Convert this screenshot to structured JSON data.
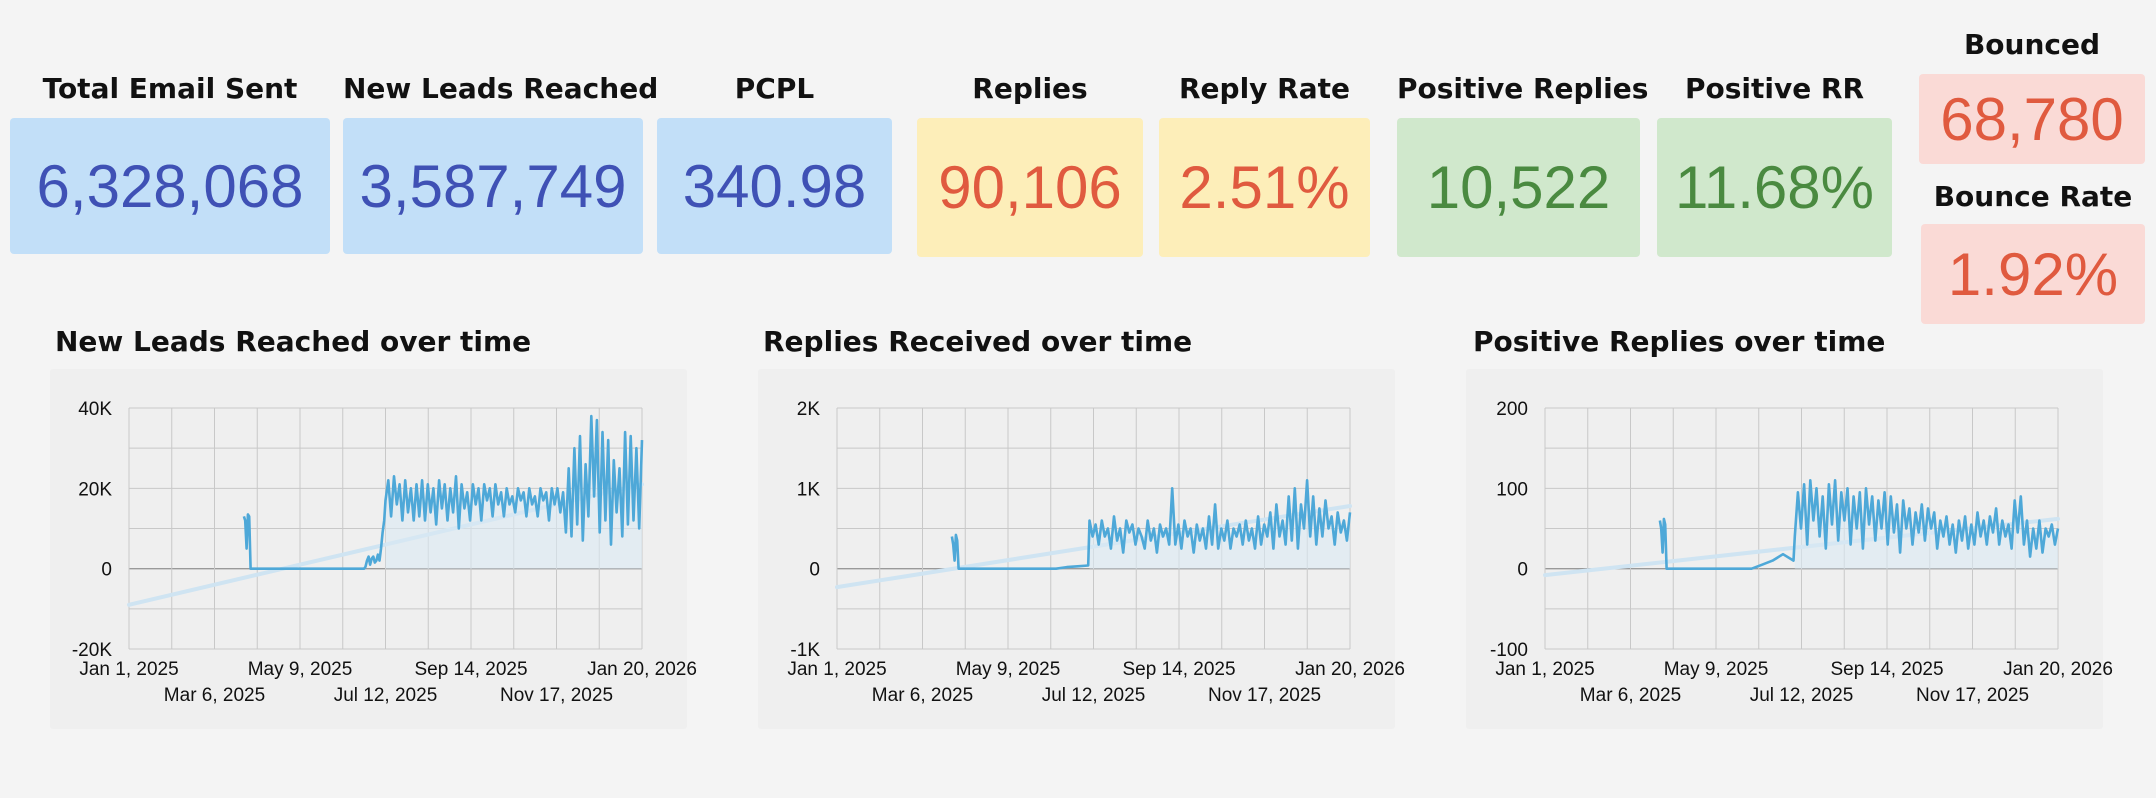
{
  "kpis": {
    "total_email_sent": {
      "label": "Total Email Sent",
      "value": "6,328,068"
    },
    "new_leads_reached": {
      "label": "New Leads Reached",
      "value": "3,587,749"
    },
    "pcpl": {
      "label": "PCPL",
      "value": "340.98"
    },
    "replies": {
      "label": "Replies",
      "value": "90,106"
    },
    "reply_rate": {
      "label": "Reply Rate",
      "value": "2.51%"
    },
    "positive_replies": {
      "label": "Positive Replies",
      "value": "10,522"
    },
    "positive_rr": {
      "label": "Positive RR",
      "value": "11.68%"
    },
    "bounced": {
      "label": "Bounced",
      "value": "68,780"
    },
    "bounce_rate": {
      "label": "Bounce Rate",
      "value": "1.92%"
    }
  },
  "colors": {
    "series_line": "#4ea8d8",
    "trend_line": "#cfe4f2",
    "area_fill": "#dbe9f3",
    "grid": "#c8c8c8",
    "zero_line": "#999999"
  },
  "chart_data": [
    {
      "type": "line",
      "title": "New Leads Reached over time",
      "ylim": [
        -20000,
        40000
      ],
      "yticks": [
        "40K",
        "20K",
        "0",
        "-20K"
      ],
      "ytick_values": [
        40000,
        20000,
        0,
        -20000
      ],
      "xlim": [
        "2025-01-01",
        "2026-01-20"
      ],
      "xticks_top": [
        "Jan 1, 2025",
        "May 9, 2025",
        "Sep 14, 2025",
        "Jan 20, 2026"
      ],
      "xticks_bottom": [
        "Mar 6, 2025",
        "Jul 12, 2025",
        "Nov 17, 2025"
      ],
      "grid": true,
      "trend": {
        "start": -9000,
        "end": 21000
      },
      "series": [
        {
          "segments": [
            {
              "from": "2025-03-28",
              "to": "2025-04-02",
              "values": [
                13000,
                12000,
                5000,
                13500,
                13000,
                0
              ]
            },
            {
              "from": "2025-04-03",
              "to": "2025-06-26",
              "values": [
                0,
                0,
                0,
                0,
                0,
                0,
                0,
                0,
                0,
                0
              ]
            },
            {
              "from": "2025-06-27",
              "to": "2025-07-11",
              "values": [
                500,
                2000,
                3000,
                1000,
                2500,
                3000,
                1500,
                2000,
                3500,
                2000,
                5000,
                9000,
                12000
              ]
            },
            {
              "from": "2025-07-12",
              "to": "2026-01-20",
              "values": [
                17000,
                22000,
                13000,
                23000,
                16000,
                21000,
                12000,
                22000,
                14000,
                20000,
                12000,
                21000,
                13000,
                22000,
                12000,
                21000,
                14000,
                20000,
                11000,
                22000,
                15000,
                21000,
                12000,
                20000,
                14000,
                23000,
                10000,
                21000,
                15000,
                19000,
                12000,
                21000,
                16000,
                20000,
                12000,
                21000,
                17000,
                20000,
                13000,
                21000,
                16000,
                19000,
                13000,
                20000,
                16000,
                18000,
                14000,
                20000,
                17000,
                19000,
                13000,
                20000,
                16000,
                18000,
                13000,
                20000,
                17000,
                19000,
                12000,
                20000,
                16000,
                20000,
                14000,
                19000,
                9000,
                25000,
                8000,
                30000,
                11000,
                33000,
                7000,
                26000,
                13000,
                38000,
                18000,
                37000,
                9000,
                34000,
                12000,
                32000,
                6000,
                27000,
                14000,
                25000,
                8000,
                34000,
                11000,
                33000,
                12000,
                30000,
                10000,
                32000
              ]
            }
          ]
        }
      ]
    },
    {
      "type": "line",
      "title": "Replies Received over time",
      "ylim": [
        -1000,
        2000
      ],
      "yticks": [
        "2K",
        "1K",
        "0",
        "-1K"
      ],
      "ytick_values": [
        2000,
        1000,
        0,
        -1000
      ],
      "xlim": [
        "2025-01-01",
        "2026-01-20"
      ],
      "xticks_top": [
        "Jan 1, 2025",
        "May 9, 2025",
        "Sep 14, 2025",
        "Jan 20, 2026"
      ],
      "xticks_bottom": [
        "Mar 6, 2025",
        "Jul 12, 2025",
        "Nov 17, 2025"
      ],
      "grid": true,
      "trend": {
        "start": -230,
        "end": 780
      },
      "series": [
        {
          "segments": [
            {
              "from": "2025-03-28",
              "to": "2025-04-02",
              "values": [
                400,
                300,
                100,
                420,
                350,
                0
              ]
            },
            {
              "from": "2025-04-03",
              "to": "2025-07-08",
              "values": [
                0,
                0,
                0,
                0,
                0,
                0,
                0,
                0,
                0,
                0,
                20,
                30,
                40
              ]
            },
            {
              "from": "2025-07-09",
              "to": "2026-01-20",
              "values": [
                600,
                400,
                550,
                300,
                600,
                400,
                500,
                250,
                650,
                350,
                500,
                200,
                600,
                450,
                550,
                300,
                500,
                400,
                250,
                600,
                350,
                500,
                200,
                550,
                400,
                500,
                300,
                1000,
                300,
                550,
                250,
                600,
                400,
                500,
                200,
                550,
                350,
                500,
                250,
                650,
                300,
                800,
                250,
                500,
                350,
                600,
                250,
                500,
                400,
                550,
                300,
                600,
                350,
                500,
                250,
                650,
                300,
                550,
                400,
                700,
                250,
                800,
                400,
                600,
                300,
                900,
                350,
                1000,
                250,
                800,
                500,
                1100,
                400,
                900,
                300,
                750,
                400,
                850,
                500,
                650,
                300,
                700,
                450,
                600,
                350,
                700
              ]
            }
          ]
        }
      ]
    },
    {
      "type": "line",
      "title": "Positive Replies over time",
      "ylim": [
        -100,
        200
      ],
      "yticks": [
        "200",
        "100",
        "0",
        "-100"
      ],
      "ytick_values": [
        200,
        100,
        0,
        -100
      ],
      "xlim": [
        "2025-01-01",
        "2026-01-20"
      ],
      "xticks_top": [
        "Jan 1, 2025",
        "May 9, 2025",
        "Sep 14, 2025",
        "Jan 20, 2026"
      ],
      "xticks_bottom": [
        "Mar 6, 2025",
        "Jul 12, 2025",
        "Nov 17, 2025"
      ],
      "grid": true,
      "trend": {
        "start": -8,
        "end": 62
      },
      "series": [
        {
          "segments": [
            {
              "from": "2025-03-28",
              "to": "2025-04-02",
              "values": [
                60,
                50,
                20,
                62,
                55,
                0
              ]
            },
            {
              "from": "2025-04-03",
              "to": "2025-07-06",
              "values": [
                0,
                0,
                0,
                0,
                0,
                0,
                0,
                0,
                0,
                5,
                10,
                18,
                10
              ]
            },
            {
              "from": "2025-07-07",
              "to": "2026-01-20",
              "values": [
                40,
                95,
                50,
                105,
                30,
                110,
                60,
                100,
                40,
                90,
                25,
                105,
                55,
                110,
                35,
                95,
                60,
                100,
                30,
                90,
                50,
                95,
                25,
                100,
                55,
                90,
                35,
                85,
                50,
                95,
                30,
                90,
                45,
                80,
                20,
                85,
                50,
                75,
                30,
                70,
                45,
                80,
                35,
                75,
                50,
                70,
                25,
                60,
                40,
                65,
                30,
                55,
                20,
                60,
                35,
                65,
                25,
                55,
                30,
                70,
                40,
                60,
                30,
                65,
                45,
                75,
                30,
                60,
                40,
                55,
                25,
                85,
                45,
                90,
                30,
                60,
                15,
                50,
                25,
                60,
                20,
                50,
                40,
                55,
                30,
                50
              ]
            }
          ]
        }
      ]
    }
  ]
}
